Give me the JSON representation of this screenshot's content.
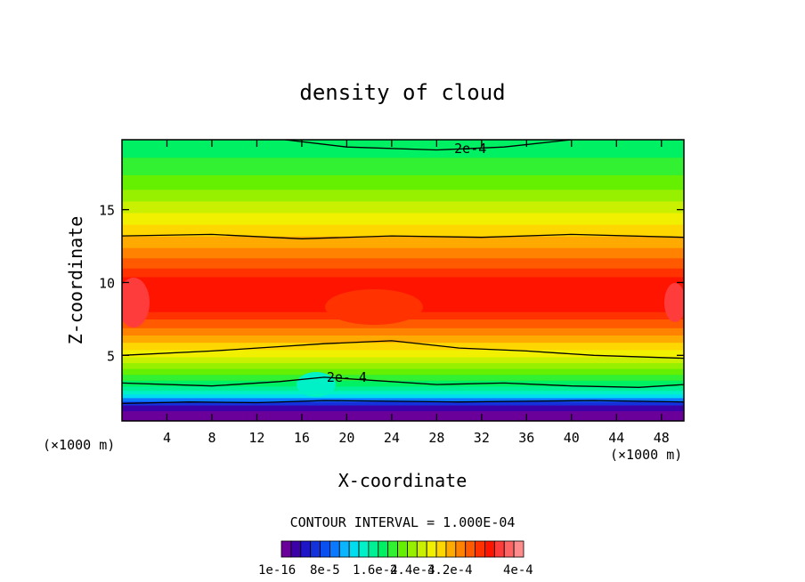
{
  "chart_data": {
    "type": "contour",
    "title": "density of cloud",
    "xlabel": "X-coordinate",
    "ylabel": "Z-coordinate",
    "x_unit": "(×1000 m)",
    "x_unit_right": "(×1000 m)",
    "xlim": [
      0,
      50
    ],
    "ylim": [
      0.5,
      19.8
    ],
    "xticks": [
      4,
      8,
      12,
      16,
      20,
      24,
      28,
      32,
      36,
      40,
      44,
      48
    ],
    "yticks": [
      5,
      10,
      15
    ],
    "contour_interval_text": "CONTOUR INTERVAL = 1.000E-04",
    "contour_labels": [
      {
        "text": "2e-4",
        "x": 31.0,
        "z": 19.2
      },
      {
        "text": "2e- 4",
        "x": 20.0,
        "z": 3.5
      }
    ],
    "colorbar": {
      "colors": [
        "#6a0099",
        "#3c00a8",
        "#1e14c8",
        "#1432dc",
        "#0a50f0",
        "#0a78ff",
        "#0ab4ff",
        "#00dcf0",
        "#00f0c8",
        "#00f096",
        "#00f064",
        "#32f032",
        "#64f000",
        "#96f000",
        "#c8f000",
        "#f0f000",
        "#ffd700",
        "#ffaa00",
        "#ff8200",
        "#ff5a00",
        "#ff3200",
        "#ff1400",
        "#ff3c3c",
        "#ff6464",
        "#ff8c8c"
      ],
      "labels": [
        "1e-16",
        "8e-5",
        "1.6e-4",
        "2.4e-4",
        "3.2e-4",
        "4e-4"
      ]
    },
    "bands": [
      {
        "z0": 0.5,
        "z1": 1.2,
        "color": "#6a0099"
      },
      {
        "z0": 1.2,
        "z1": 1.6,
        "color": "#3c00a8"
      },
      {
        "z0": 1.6,
        "z1": 1.85,
        "color": "#1432dc"
      },
      {
        "z0": 1.85,
        "z1": 2.1,
        "color": "#0a78ff"
      },
      {
        "z0": 2.1,
        "z1": 2.35,
        "color": "#00dcf0"
      },
      {
        "z0": 2.35,
        "z1": 2.6,
        "color": "#00f0c8"
      },
      {
        "z0": 2.6,
        "z1": 2.9,
        "color": "#00f096"
      },
      {
        "z0": 2.9,
        "z1": 3.3,
        "color": "#00f064"
      },
      {
        "z0": 3.3,
        "z1": 3.7,
        "color": "#32f032"
      },
      {
        "z0": 3.7,
        "z1": 4.1,
        "color": "#64f000"
      },
      {
        "z0": 4.1,
        "z1": 4.5,
        "color": "#96f000"
      },
      {
        "z0": 4.5,
        "z1": 4.9,
        "color": "#c8f000"
      },
      {
        "z0": 4.9,
        "z1": 5.4,
        "color": "#f0f000"
      },
      {
        "z0": 5.4,
        "z1": 5.9,
        "color": "#ffd700"
      },
      {
        "z0": 5.9,
        "z1": 6.4,
        "color": "#ffaa00"
      },
      {
        "z0": 6.4,
        "z1": 6.9,
        "color": "#ff8200"
      },
      {
        "z0": 6.9,
        "z1": 7.5,
        "color": "#ff5a00"
      },
      {
        "z0": 7.5,
        "z1": 8.0,
        "color": "#ff3200"
      },
      {
        "z0": 8.0,
        "z1": 10.4,
        "color": "#ff1400"
      },
      {
        "z0": 10.4,
        "z1": 11.0,
        "color": "#ff3200"
      },
      {
        "z0": 11.0,
        "z1": 11.7,
        "color": "#ff5a00"
      },
      {
        "z0": 11.7,
        "z1": 12.4,
        "color": "#ff8200"
      },
      {
        "z0": 12.4,
        "z1": 13.2,
        "color": "#ffaa00"
      },
      {
        "z0": 13.2,
        "z1": 14.0,
        "color": "#ffd700"
      },
      {
        "z0": 14.0,
        "z1": 14.8,
        "color": "#f0f000"
      },
      {
        "z0": 14.8,
        "z1": 15.6,
        "color": "#c8f000"
      },
      {
        "z0": 15.6,
        "z1": 16.4,
        "color": "#96f000"
      },
      {
        "z0": 16.4,
        "z1": 17.4,
        "color": "#64f000"
      },
      {
        "z0": 17.4,
        "z1": 18.6,
        "color": "#32f032"
      },
      {
        "z0": 18.6,
        "z1": 19.8,
        "color": "#00f064"
      }
    ],
    "contour_lines": [
      {
        "level": "2e-4",
        "points": [
          [
            0,
            1.7
          ],
          [
            6,
            1.8
          ],
          [
            12,
            1.75
          ],
          [
            18,
            1.9
          ],
          [
            24,
            1.85
          ],
          [
            30,
            1.8
          ],
          [
            36,
            1.85
          ],
          [
            42,
            1.9
          ],
          [
            50,
            1.8
          ]
        ]
      },
      {
        "level": "2e-4",
        "points": [
          [
            0,
            3.1
          ],
          [
            8,
            2.9
          ],
          [
            14,
            3.2
          ],
          [
            18,
            3.5
          ],
          [
            22,
            3.3
          ],
          [
            28,
            3.0
          ],
          [
            34,
            3.1
          ],
          [
            40,
            2.9
          ],
          [
            46,
            2.8
          ],
          [
            50,
            3.0
          ]
        ]
      },
      {
        "level": "3e-4",
        "points": [
          [
            0,
            5.0
          ],
          [
            8,
            5.3
          ],
          [
            14,
            5.6
          ],
          [
            18,
            5.8
          ],
          [
            24,
            6.0
          ],
          [
            30,
            5.5
          ],
          [
            36,
            5.3
          ],
          [
            42,
            5.0
          ],
          [
            50,
            4.8
          ]
        ]
      },
      {
        "level": "3e-4",
        "points": [
          [
            0,
            13.2
          ],
          [
            8,
            13.3
          ],
          [
            16,
            13.0
          ],
          [
            24,
            13.2
          ],
          [
            32,
            13.1
          ],
          [
            40,
            13.3
          ],
          [
            50,
            13.1
          ]
        ]
      },
      {
        "level": "2e-4",
        "points": [
          [
            14.5,
            19.8
          ],
          [
            20,
            19.3
          ],
          [
            28,
            19.1
          ],
          [
            34,
            19.3
          ],
          [
            40,
            19.8
          ]
        ]
      }
    ]
  }
}
